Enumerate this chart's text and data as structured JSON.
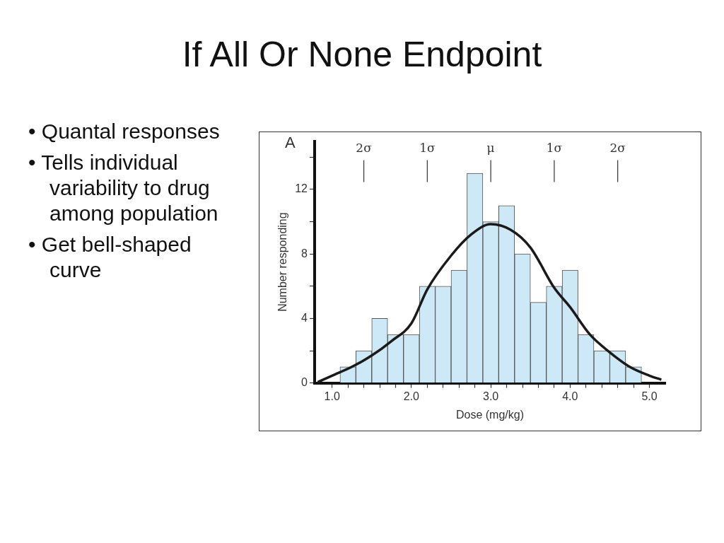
{
  "chart_data": {
    "type": "histogram",
    "title": "If All Or None Endpoint",
    "xlabel": "Dose (mg/kg)",
    "ylabel": "Number responding",
    "bins": [
      1.1,
      1.3,
      1.5,
      1.7,
      1.9,
      2.1,
      2.3,
      2.5,
      2.7,
      2.9,
      3.1,
      3.3,
      3.5,
      3.7,
      3.9,
      4.1,
      4.3,
      4.5,
      4.7,
      4.9
    ],
    "series": [
      {
        "color": "#cde8f6",
        "values": [
          1,
          2,
          4,
          3,
          3,
          6,
          6,
          7,
          13,
          10,
          11,
          8,
          5,
          6,
          7,
          3,
          2,
          2,
          1
        ]
      },
      {
        "type": "line",
        "color": "#1a1a1a",
        "x": [
          0.82,
          1.0,
          1.25,
          1.5,
          1.75,
          2.0,
          2.2,
          2.5,
          2.75,
          3.0,
          3.25,
          3.5,
          3.8,
          4.0,
          4.25,
          4.5,
          4.75,
          5.0,
          5.15
        ],
        "values": [
          0.05,
          0.45,
          1.0,
          1.7,
          2.6,
          3.7,
          5.8,
          7.9,
          9.2,
          9.85,
          9.5,
          8.4,
          5.9,
          4.7,
          3.0,
          1.9,
          1.0,
          0.45,
          0.2
        ]
      }
    ],
    "xlim": [
      0.78,
      5.2
    ],
    "ylim": [
      0,
      15
    ],
    "xticks": [
      {
        "value": 1,
        "label": "1.0"
      },
      {
        "value": 1.2,
        "label": null
      },
      {
        "value": 1.4,
        "label": null
      },
      {
        "value": 1.6,
        "label": null
      },
      {
        "value": 1.8,
        "label": null
      },
      {
        "value": 2,
        "label": "2.0"
      },
      {
        "value": 2.2,
        "label": null
      },
      {
        "value": 2.4,
        "label": null
      },
      {
        "value": 2.6,
        "label": null
      },
      {
        "value": 2.8,
        "label": null
      },
      {
        "value": 3,
        "label": "3.0"
      },
      {
        "value": 3.2,
        "label": null
      },
      {
        "value": 3.4,
        "label": null
      },
      {
        "value": 3.6,
        "label": null
      },
      {
        "value": 3.8,
        "label": null
      },
      {
        "value": 4,
        "label": "4.0"
      },
      {
        "value": 4.2,
        "label": null
      },
      {
        "value": 4.4,
        "label": null
      },
      {
        "value": 4.6,
        "label": null
      },
      {
        "value": 4.8,
        "label": null
      },
      {
        "value": 5,
        "label": "5.0"
      }
    ],
    "yticks": [
      0,
      {
        "value": 2,
        "label": null
      },
      4,
      {
        "value": 6,
        "label": null
      },
      8,
      {
        "value": 10,
        "label": null
      },
      12,
      {
        "value": 14,
        "label": null
      }
    ],
    "annotations": [
      "A",
      "• Quantal responses",
      "• Tells individual variability to drug among population",
      "• Get bell-shaped curve",
      {
        "text": "2σ",
        "x": 1.4
      },
      {
        "text": "1σ",
        "x": 2.2
      },
      {
        "text": "μ",
        "x": 3.0
      },
      {
        "text": "1σ",
        "x": 3.8
      },
      {
        "text": "2σ",
        "x": 4.6
      }
    ],
    "grid": false,
    "legend": false,
    "marker": "none",
    "line_style": "solid"
  }
}
